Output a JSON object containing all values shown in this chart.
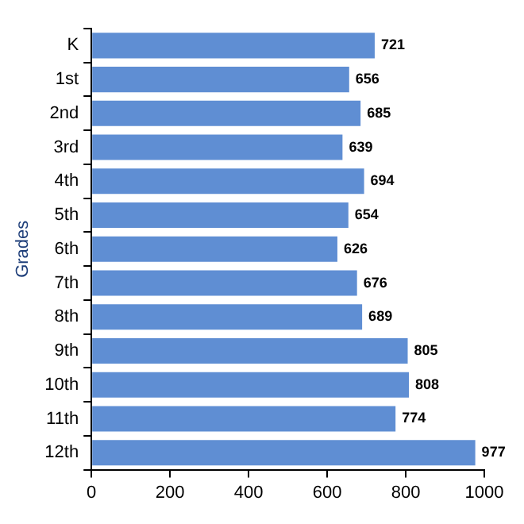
{
  "chart_data": {
    "type": "bar",
    "orientation": "horizontal",
    "ylabel": "Grades",
    "categories": [
      "K",
      "1st",
      "2nd",
      "3rd",
      "4th",
      "5th",
      "6th",
      "7th",
      "8th",
      "9th",
      "10th",
      "11th",
      "12th"
    ],
    "values": [
      721,
      656,
      685,
      639,
      694,
      654,
      626,
      676,
      689,
      805,
      808,
      774,
      977
    ],
    "color": "#5f8ed3",
    "xlim": [
      0,
      1000
    ],
    "xticks": [
      0,
      200,
      400,
      600,
      800,
      1000
    ],
    "data_labels": true,
    "grid": false,
    "legend": false
  }
}
